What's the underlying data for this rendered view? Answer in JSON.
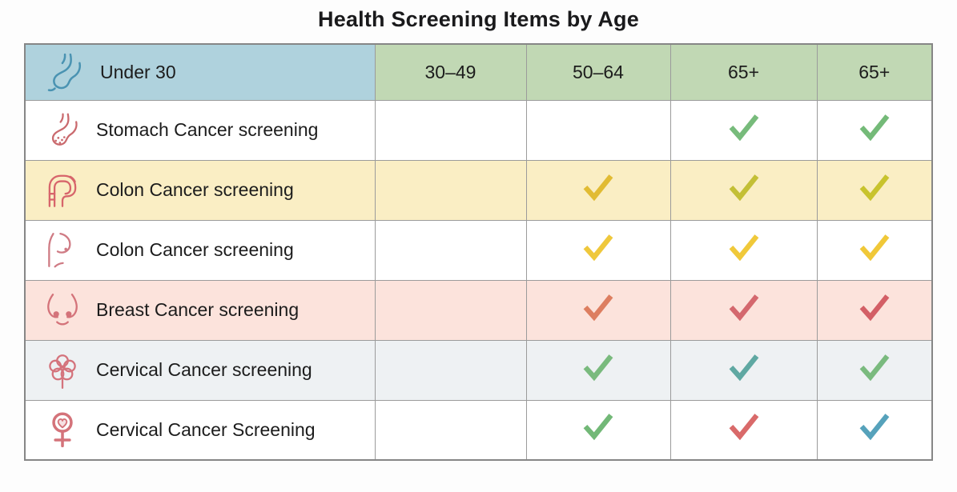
{
  "title": "Health Screening Items by Age",
  "table": {
    "header": {
      "first_cell": {
        "label": "Under 30",
        "icon": "stomach-icon",
        "bg": "#afd2dd",
        "icon_color": "#4a93b2"
      },
      "age_bg": "#c1d8b4",
      "age_columns": [
        {
          "label": "30–49"
        },
        {
          "label": "50–64"
        },
        {
          "label": "65+"
        },
        {
          "label": "65+"
        }
      ]
    },
    "rows": [
      {
        "label": "Stomach Cancer screening",
        "icon": "stomach-dots-icon",
        "icon_color": "#ca6a6e",
        "bg": "#ffffff",
        "checks": [
          "",
          "",
          "#77bb7b",
          "#74ba78"
        ]
      },
      {
        "label": "Colon Cancer screening",
        "icon": "colon-icon",
        "icon_color": "#d7656b",
        "bg": "#faeec4",
        "checks": [
          "",
          "#e1bb33",
          "#c3bf36",
          "#c8c32e"
        ]
      },
      {
        "label": "Colon Cancer screening",
        "icon": "breast-profile-icon",
        "icon_color": "#cf7b84",
        "bg": "#ffffff",
        "checks": [
          "",
          "#efc83c",
          "#f0c93a",
          "#f0c838"
        ]
      },
      {
        "label": "Breast Cancer screening",
        "icon": "breasts-icon",
        "icon_color": "#d4737a",
        "bg": "#fce3dc",
        "checks": [
          "",
          "#dd7e60",
          "#d4686e",
          "#d35f66"
        ]
      },
      {
        "label": "Cervical Cancer screening",
        "icon": "flower-icon",
        "icon_color": "#d4737c",
        "bg": "#eef1f3",
        "checks": [
          "",
          "#79ba7d",
          "#5fa8a2",
          "#7aba7e"
        ]
      },
      {
        "label": "Cervical Cancer Screening",
        "icon": "female-symbol-icon",
        "icon_color": "#d4737a",
        "bg": "#ffffff",
        "checks": [
          "",
          "#72b877",
          "#d96a6a",
          "#56a2bb"
        ]
      }
    ]
  },
  "chart_data": {
    "type": "table",
    "title": "Health Screening Items by Age",
    "columns": [
      "Under 30",
      "30–49",
      "50–64",
      "65+",
      "65+"
    ],
    "rows": [
      {
        "label": "Stomach Cancer screening",
        "checks_by_age": [
          false,
          false,
          true,
          true
        ]
      },
      {
        "label": "Colon Cancer screening",
        "checks_by_age": [
          false,
          true,
          true,
          true
        ]
      },
      {
        "label": "Colon Cancer screening",
        "checks_by_age": [
          false,
          true,
          true,
          true
        ]
      },
      {
        "label": "Breast Cancer screening",
        "checks_by_age": [
          false,
          true,
          true,
          true
        ]
      },
      {
        "label": "Cervical Cancer screening",
        "checks_by_age": [
          false,
          true,
          true,
          true
        ]
      },
      {
        "label": "Cervical Cancer Screening",
        "checks_by_age": [
          false,
          true,
          true,
          true
        ]
      }
    ]
  }
}
